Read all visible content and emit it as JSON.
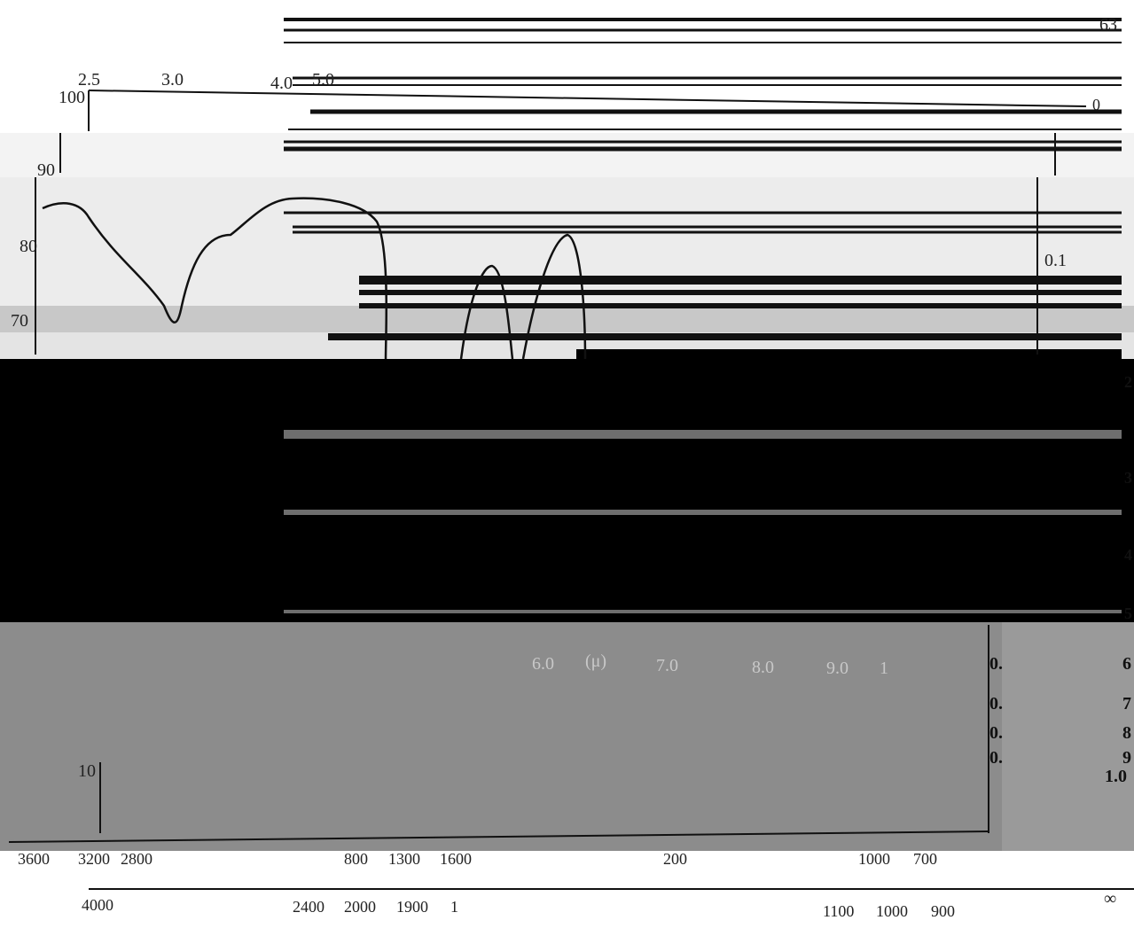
{
  "corner_label": "63",
  "wavelength_scale": {
    "labels": [
      "2.5",
      "3.0",
      "4.0",
      "5.0"
    ]
  },
  "transmittance_scale": {
    "labels": [
      "100",
      "90",
      "80",
      "70",
      "10"
    ]
  },
  "absorbance_scale": {
    "labels": [
      "0",
      "0.1",
      "0.",
      "0.",
      "0.",
      "0."
    ]
  },
  "middle_scale": {
    "labels": [
      "6.0",
      "(μ)",
      "7.0",
      "8.0",
      "9.0",
      "1"
    ]
  },
  "edge_scale": {
    "labels": [
      "2",
      "3",
      "4",
      "5",
      "6",
      "7",
      "8",
      "9",
      "1.0"
    ]
  },
  "wavenumber_scale_upper": {
    "labels": [
      "3600",
      "3200",
      "2800",
      "800",
      "1300",
      "1600",
      "200",
      "1000",
      "700"
    ]
  },
  "wavenumber_scale_lower": {
    "labels": [
      "4000",
      "2400",
      "2000",
      "1900",
      "1",
      "1100",
      "1000",
      "900",
      "∞"
    ]
  }
}
